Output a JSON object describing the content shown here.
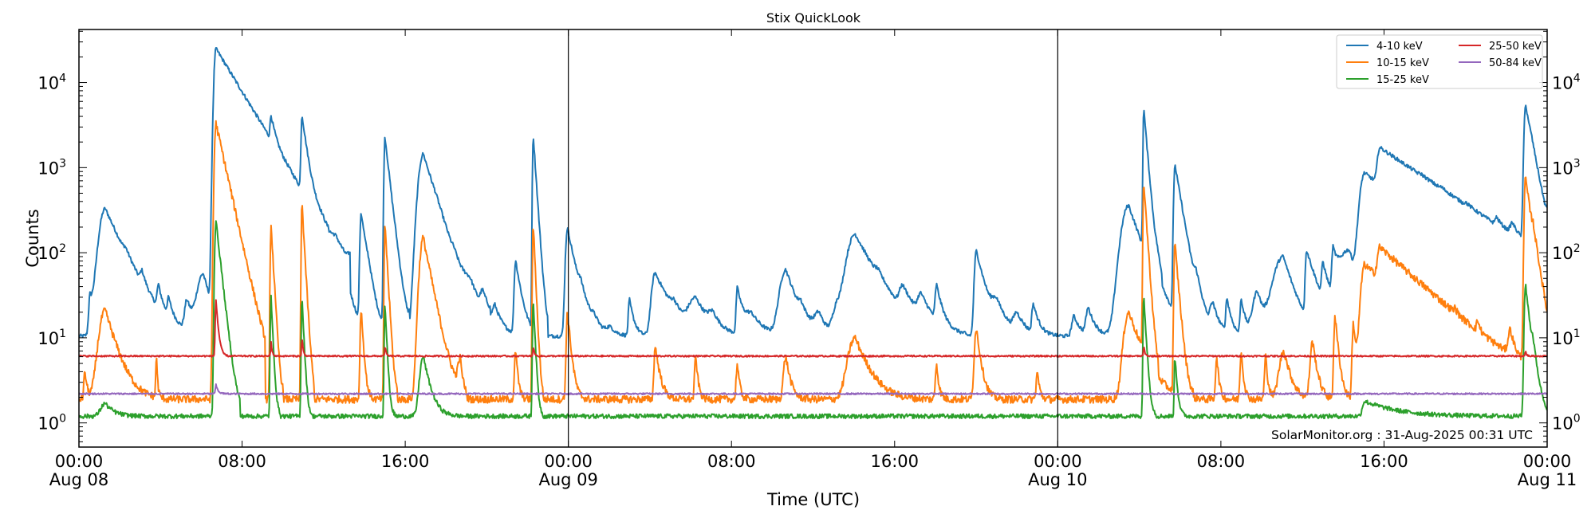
{
  "chart_data": {
    "type": "line",
    "title": "Stix QuickLook",
    "xlabel": "Time (UTC)",
    "ylabel": "Counts",
    "yscale": "log",
    "ylim": [
      0.52,
      42000
    ],
    "xlim_hours": [
      0,
      72
    ],
    "grid": false,
    "legend_position": "upper right",
    "legend_ncol": 2,
    "x_ticks": [
      {
        "hour": 0,
        "label": "00:00",
        "sublabel": "Aug 08",
        "day_line": true
      },
      {
        "hour": 8,
        "label": "08:00",
        "sublabel": ""
      },
      {
        "hour": 16,
        "label": "16:00",
        "sublabel": ""
      },
      {
        "hour": 24,
        "label": "00:00",
        "sublabel": "Aug 09",
        "day_line": true
      },
      {
        "hour": 32,
        "label": "08:00",
        "sublabel": ""
      },
      {
        "hour": 40,
        "label": "16:00",
        "sublabel": ""
      },
      {
        "hour": 48,
        "label": "00:00",
        "sublabel": "Aug 10",
        "day_line": true
      },
      {
        "hour": 56,
        "label": "08:00",
        "sublabel": ""
      },
      {
        "hour": 64,
        "label": "16:00",
        "sublabel": ""
      },
      {
        "hour": 72,
        "label": "00:00",
        "sublabel": "Aug 11"
      }
    ],
    "y_ticks": [
      {
        "value": 1,
        "base": "10",
        "exp": "0"
      },
      {
        "value": 10,
        "base": "10",
        "exp": "1"
      },
      {
        "value": 100,
        "base": "10",
        "exp": "2"
      },
      {
        "value": 1000,
        "base": "10",
        "exp": "3"
      },
      {
        "value": 10000,
        "base": "10",
        "exp": "4"
      }
    ],
    "annotation": "SolarMonitor.org : 31-Aug-2025 00:31 UTC",
    "series": [
      {
        "name": "4-10 keV",
        "color": "#1f77b4",
        "baseline": 10.5,
        "noise": 0.05,
        "peaks": [
          [
            0.55,
            30,
            0.06,
            0.2
          ],
          [
            1.29,
            330,
            0.25,
            0.8
          ],
          [
            2.3,
            25,
            0.1,
            0.3
          ],
          [
            3.1,
            28,
            0.08,
            0.2
          ],
          [
            3.9,
            30,
            0.06,
            0.2
          ],
          [
            4.4,
            22,
            0.06,
            0.2
          ],
          [
            5.3,
            26,
            0.1,
            0.3
          ],
          [
            6.1,
            55,
            0.25,
            0.4
          ],
          [
            6.72,
            25000,
            0.08,
            1.1
          ],
          [
            7.6,
            30,
            0.2,
            0.6
          ],
          [
            9.42,
            2000,
            0.04,
            0.2
          ],
          [
            10.3,
            25,
            0.1,
            0.3
          ],
          [
            10.94,
            3600,
            0.04,
            0.22
          ],
          [
            11.9,
            30,
            0.2,
            0.5
          ],
          [
            12.6,
            35,
            0.15,
            0.4
          ],
          [
            13.3,
            30,
            0.1,
            0.3
          ],
          [
            13.84,
            290,
            0.05,
            0.25
          ],
          [
            14.2,
            22,
            0.08,
            0.2
          ],
          [
            15.01,
            2300,
            0.04,
            0.2
          ],
          [
            15.5,
            20,
            0.1,
            0.3
          ],
          [
            16.89,
            1450,
            0.2,
            0.55
          ],
          [
            17.5,
            30,
            0.1,
            0.3
          ],
          [
            18.4,
            22,
            0.1,
            0.3
          ],
          [
            19.2,
            28,
            0.3,
            0.5
          ],
          [
            19.8,
            24,
            0.1,
            0.4
          ],
          [
            20.4,
            20,
            0.1,
            0.3
          ],
          [
            21.42,
            80,
            0.06,
            0.25
          ],
          [
            22.28,
            2400,
            0.03,
            0.12
          ],
          [
            23.96,
            195,
            0.08,
            0.35
          ],
          [
            24.6,
            22,
            0.1,
            0.3
          ],
          [
            25.3,
            14,
            0.2,
            0.3
          ],
          [
            26.1,
            13,
            0.2,
            0.3
          ],
          [
            27.0,
            28,
            0.05,
            0.2
          ],
          [
            28.26,
            58,
            0.15,
            0.7
          ],
          [
            29.2,
            16,
            0.15,
            0.3
          ],
          [
            30.25,
            27,
            0.3,
            0.6
          ],
          [
            31.1,
            16,
            0.2,
            0.3
          ],
          [
            32.29,
            38,
            0.05,
            0.25
          ],
          [
            33.0,
            18,
            0.3,
            0.6
          ],
          [
            34.67,
            63,
            0.25,
            0.5
          ],
          [
            35.4,
            16,
            0.1,
            0.3
          ],
          [
            36.3,
            18,
            0.2,
            0.3
          ],
          [
            37.2,
            22,
            0.2,
            0.3
          ],
          [
            38.07,
            165,
            0.35,
            0.9
          ],
          [
            39.2,
            20,
            0.15,
            0.4
          ],
          [
            40.4,
            30,
            0.15,
            0.6
          ],
          [
            41.3,
            25,
            0.15,
            0.5
          ],
          [
            42.06,
            36,
            0.06,
            0.25
          ],
          [
            44.01,
            105,
            0.08,
            0.4
          ],
          [
            45.0,
            22,
            0.2,
            0.5
          ],
          [
            46.0,
            18,
            0.15,
            0.4
          ],
          [
            46.8,
            24,
            0.06,
            0.25
          ],
          [
            48.8,
            18,
            0.1,
            0.3
          ],
          [
            49.5,
            22,
            0.1,
            0.3
          ],
          [
            51.48,
            360,
            0.3,
            0.6
          ],
          [
            52.22,
            4800,
            0.03,
            0.15
          ],
          [
            52.9,
            30,
            0.1,
            0.3
          ],
          [
            53.75,
            1070,
            0.05,
            0.3
          ],
          [
            54.8,
            30,
            0.1,
            0.3
          ],
          [
            55.6,
            25,
            0.1,
            0.3
          ],
          [
            56.3,
            28,
            0.05,
            0.2
          ],
          [
            57.0,
            28,
            0.05,
            0.2
          ],
          [
            57.8,
            35,
            0.2,
            0.3
          ],
          [
            59.06,
            90,
            0.4,
            0.5
          ],
          [
            60.2,
            100,
            0.05,
            0.5
          ],
          [
            61.0,
            60,
            0.05,
            0.3
          ],
          [
            61.5,
            90,
            0.05,
            0.3
          ],
          [
            62.3,
            100,
            0.4,
            0.4
          ],
          [
            63.05,
            850,
            0.2,
            2.5
          ],
          [
            63.79,
            1100,
            0.1,
            2.8
          ],
          [
            65.8,
            40,
            0.05,
            0.3
          ],
          [
            66.8,
            35,
            0.05,
            0.3
          ],
          [
            68.0,
            35,
            0.05,
            0.3
          ],
          [
            69.5,
            60,
            0.05,
            0.3
          ],
          [
            70.3,
            70,
            0.1,
            0.3
          ],
          [
            70.94,
            5400,
            0.06,
            0.3
          ],
          [
            71.2,
            300,
            0.05,
            0.4
          ],
          [
            72.0,
            50,
            0.05,
            0.1
          ]
        ]
      },
      {
        "name": "10-15 keV",
        "color": "#ff7f0e",
        "baseline": 1.9,
        "noise": 0.1,
        "peaks": [
          [
            0.3,
            4,
            0.05,
            0.1
          ],
          [
            1.29,
            21,
            0.25,
            0.5
          ],
          [
            3.8,
            6,
            0.03,
            0.05
          ],
          [
            6.72,
            3300,
            0.06,
            0.4
          ],
          [
            9.42,
            220,
            0.03,
            0.1
          ],
          [
            10.94,
            380,
            0.03,
            0.1
          ],
          [
            13.84,
            22,
            0.04,
            0.1
          ],
          [
            15.01,
            220,
            0.03,
            0.1
          ],
          [
            16.89,
            150,
            0.15,
            0.35
          ],
          [
            18.7,
            5,
            0.1,
            0.1
          ],
          [
            21.42,
            7,
            0.05,
            0.1
          ],
          [
            22.28,
            220,
            0.03,
            0.08
          ],
          [
            23.96,
            20,
            0.05,
            0.15
          ],
          [
            28.26,
            8,
            0.05,
            0.2
          ],
          [
            30.25,
            6,
            0.05,
            0.1
          ],
          [
            32.29,
            5,
            0.05,
            0.1
          ],
          [
            34.67,
            6,
            0.1,
            0.2
          ],
          [
            38.07,
            10,
            0.3,
            0.6
          ],
          [
            42.06,
            5,
            0.05,
            0.1
          ],
          [
            44.01,
            13,
            0.08,
            0.2
          ],
          [
            47,
            4,
            0.05,
            0.1
          ],
          [
            51.48,
            20,
            0.2,
            0.6
          ],
          [
            52.22,
            680,
            0.03,
            0.12
          ],
          [
            53.75,
            125,
            0.04,
            0.15
          ],
          [
            55.8,
            6,
            0.05,
            0.1
          ],
          [
            57.0,
            7,
            0.05,
            0.1
          ],
          [
            58.2,
            6,
            0.05,
            0.1
          ],
          [
            59.1,
            7,
            0.2,
            0.3
          ],
          [
            60.5,
            9,
            0.1,
            0.2
          ],
          [
            61.6,
            18,
            0.05,
            0.15
          ],
          [
            62.5,
            15,
            0.05,
            0.15
          ],
          [
            63.05,
            72,
            0.15,
            2.0
          ],
          [
            63.79,
            68,
            0.1,
            2.0
          ],
          [
            67.5,
            5,
            0.05,
            0.1
          ],
          [
            68.6,
            6,
            0.05,
            0.1
          ],
          [
            70.2,
            8,
            0.1,
            0.2
          ],
          [
            70.94,
            750,
            0.05,
            0.25
          ],
          [
            71.3,
            60,
            0.05,
            0.3
          ]
        ]
      },
      {
        "name": "15-25 keV",
        "color": "#2ca02c",
        "baseline": 1.2,
        "noise": 0.06,
        "peaks": [
          [
            1.29,
            1.7,
            0.2,
            0.4
          ],
          [
            6.72,
            235,
            0.05,
            0.2
          ],
          [
            9.42,
            30,
            0.03,
            0.08
          ],
          [
            10.94,
            30,
            0.03,
            0.08
          ],
          [
            15.01,
            25,
            0.03,
            0.08
          ],
          [
            16.89,
            6,
            0.15,
            0.3
          ],
          [
            22.28,
            28,
            0.03,
            0.08
          ],
          [
            52.22,
            31,
            0.03,
            0.1
          ],
          [
            53.75,
            6,
            0.03,
            0.1
          ],
          [
            63.05,
            1.8,
            0.1,
            1.5
          ],
          [
            70.94,
            42,
            0.05,
            0.2
          ],
          [
            71.3,
            4,
            0.05,
            0.2
          ]
        ]
      },
      {
        "name": "25-50 keV",
        "color": "#d62728",
        "baseline": 6.1,
        "noise": 0.02,
        "peaks": [
          [
            6.72,
            28,
            0.03,
            0.1
          ],
          [
            9.42,
            9,
            0.02,
            0.05
          ],
          [
            10.94,
            10,
            0.02,
            0.05
          ],
          [
            15.01,
            8,
            0.02,
            0.05
          ],
          [
            22.28,
            8,
            0.02,
            0.05
          ],
          [
            52.22,
            8,
            0.02,
            0.05
          ],
          [
            70.94,
            7,
            0.02,
            0.05
          ]
        ]
      },
      {
        "name": "50-84 keV",
        "color": "#9467bd",
        "baseline": 2.2,
        "noise": 0.02,
        "peaks": [
          [
            6.72,
            2.8,
            0.03,
            0.1
          ]
        ]
      }
    ]
  }
}
